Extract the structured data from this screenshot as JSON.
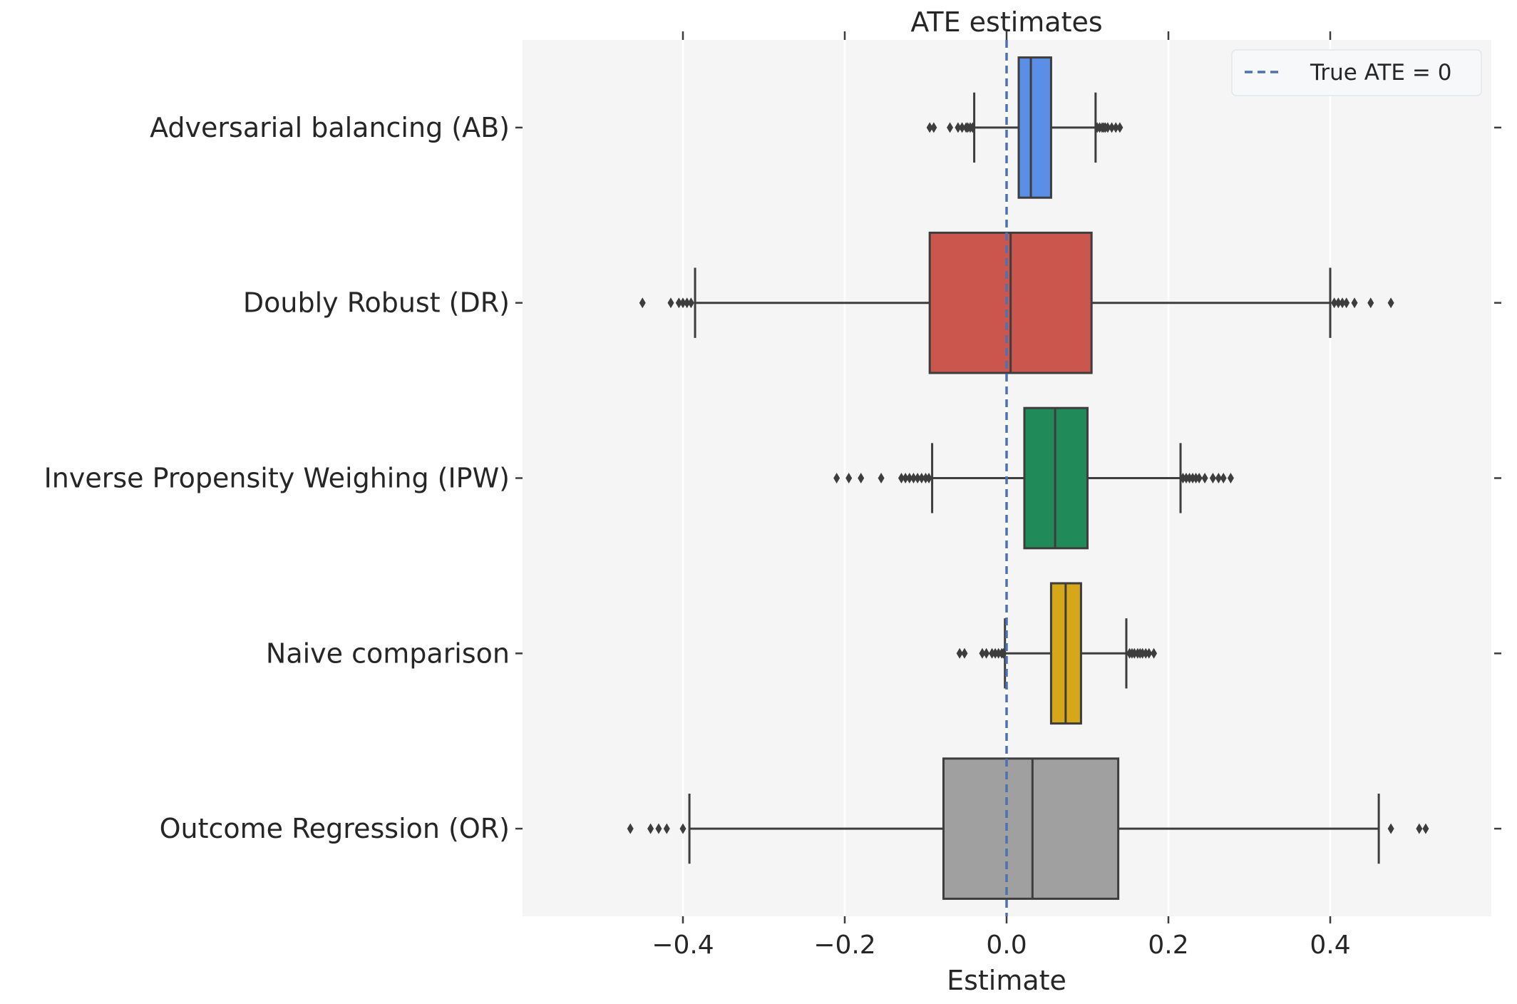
{
  "chart_data": {
    "type": "boxplot",
    "orientation": "horizontal",
    "title": "ATE estimates",
    "xlabel": "Estimate",
    "ylabel": "",
    "xlim": [
      -0.6,
      0.6
    ],
    "xticks": [
      -0.4,
      -0.2,
      0.0,
      0.2,
      0.4
    ],
    "xtick_labels": [
      "−0.4",
      "−0.2",
      "0.0",
      "0.2",
      "0.4"
    ],
    "grid": "vertical",
    "legend": {
      "position": "top-right",
      "entries": [
        {
          "label": "True ATE = 0",
          "style": "dashed",
          "color": "#4c72b0"
        }
      ]
    },
    "reference_line": {
      "x": 0.0,
      "label": "True ATE = 0",
      "color": "#4c72b0"
    },
    "series": [
      {
        "name": "Adversarial balancing (AB)",
        "color": "#5b8ee6",
        "q1": 0.015,
        "median": 0.03,
        "q3": 0.055,
        "whisker_low": -0.04,
        "whisker_high": 0.11,
        "outliers": [
          -0.095,
          -0.09,
          -0.07,
          -0.06,
          -0.055,
          -0.05,
          -0.048,
          -0.045,
          -0.042,
          0.112,
          0.115,
          0.118,
          0.12,
          0.122,
          0.125,
          0.13,
          0.135,
          0.14
        ]
      },
      {
        "name": "Doubly Robust (DR)",
        "color": "#cb564d",
        "q1": -0.095,
        "median": 0.005,
        "q3": 0.105,
        "whisker_low": -0.385,
        "whisker_high": 0.4,
        "outliers": [
          -0.45,
          -0.415,
          -0.405,
          -0.4,
          -0.395,
          -0.39,
          0.405,
          0.41,
          0.415,
          0.42,
          0.43,
          0.45,
          0.475
        ]
      },
      {
        "name": "Inverse Propensity Weighing (IPW)",
        "color": "#208b59",
        "q1": 0.022,
        "median": 0.06,
        "q3": 0.1,
        "whisker_low": -0.092,
        "whisker_high": 0.215,
        "outliers": [
          -0.21,
          -0.195,
          -0.18,
          -0.155,
          -0.13,
          -0.125,
          -0.12,
          -0.115,
          -0.11,
          -0.105,
          -0.1,
          -0.096,
          0.218,
          0.222,
          0.226,
          0.23,
          0.234,
          0.238,
          0.245,
          0.255,
          0.262,
          0.268,
          0.277
        ]
      },
      {
        "name": "Naive comparison",
        "color": "#d6a61b",
        "q1": 0.055,
        "median": 0.073,
        "q3": 0.092,
        "whisker_low": -0.002,
        "whisker_high": 0.148,
        "outliers": [
          -0.058,
          -0.052,
          -0.03,
          -0.025,
          -0.018,
          -0.014,
          -0.01,
          -0.006,
          -0.004,
          0.152,
          0.155,
          0.158,
          0.162,
          0.165,
          0.168,
          0.172,
          0.176,
          0.182
        ]
      },
      {
        "name": "Outcome Regression (OR)",
        "color": "#a0a0a0",
        "q1": -0.078,
        "median": 0.032,
        "q3": 0.138,
        "whisker_low": -0.392,
        "whisker_high": 0.46,
        "outliers": [
          -0.465,
          -0.44,
          -0.43,
          -0.42,
          -0.4,
          0.475,
          0.51,
          0.518
        ]
      }
    ]
  }
}
